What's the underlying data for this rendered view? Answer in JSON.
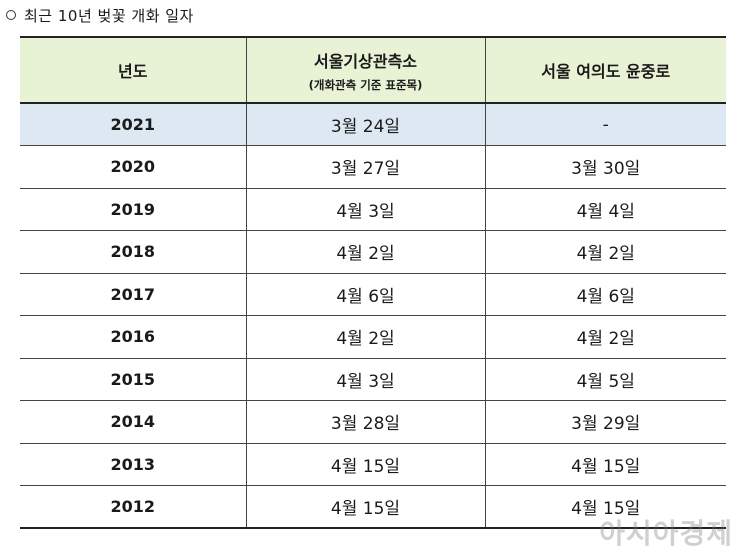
{
  "caption": "최근 10년 벚꽃 개화 일자",
  "header": {
    "col_year": "년도",
    "col_observatory": "서울기상관측소",
    "col_observatory_sub": "(개화관측 기준 표준목)",
    "col_yeouido": "서울 여의도 윤중로"
  },
  "rows": [
    {
      "year": "2021",
      "observatory": "3월 24일",
      "yeouido": "-"
    },
    {
      "year": "2020",
      "observatory": "3월 27일",
      "yeouido": "3월 30일"
    },
    {
      "year": "2019",
      "observatory": "4월 3일",
      "yeouido": "4월 4일"
    },
    {
      "year": "2018",
      "observatory": "4월 2일",
      "yeouido": "4월 2일"
    },
    {
      "year": "2017",
      "observatory": "4월 6일",
      "yeouido": "4월 6일"
    },
    {
      "year": "2016",
      "observatory": "4월 2일",
      "yeouido": "4월 2일"
    },
    {
      "year": "2015",
      "observatory": "4월 3일",
      "yeouido": "4월 5일"
    },
    {
      "year": "2014",
      "observatory": "3월 28일",
      "yeouido": "3월 29일"
    },
    {
      "year": "2013",
      "observatory": "4월 15일",
      "yeouido": "4월 15일"
    },
    {
      "year": "2012",
      "observatory": "4월 15일",
      "yeouido": "4월 15일"
    }
  ],
  "watermark": "아시아경제",
  "colors": {
    "header_bg": "#e8f3d6",
    "highlight_row_bg": "#dde8f3"
  }
}
